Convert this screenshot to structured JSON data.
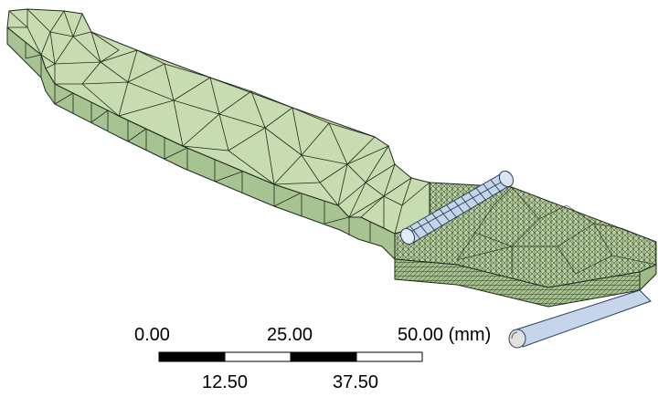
{
  "scale_bar": {
    "top_labels": [
      "0.00",
      "25.00",
      "50.00 (mm)"
    ],
    "bottom_labels": [
      "12.50",
      "37.50"
    ]
  },
  "colors": {
    "background": "#ffffff",
    "part_top": "#c8ddb1",
    "part_side": "#a9c592",
    "part_dark": "#8fae79",
    "mesh_lines": "#1f2a1a",
    "roller": "#c6d6ec",
    "roller_lines": "#2a3f5c",
    "scale_black": "#000000",
    "scale_white": "#ffffff"
  }
}
